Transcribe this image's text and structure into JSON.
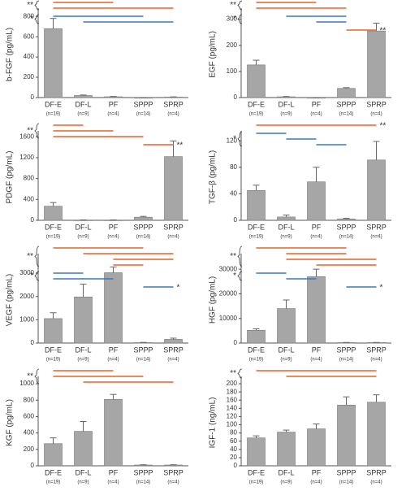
{
  "chart_data": [
    {
      "type": "bar",
      "ylabel": "b-FGF (pg/mL)",
      "categories": [
        "DF-E",
        "DF-L",
        "PF",
        "SPPP",
        "SPRP"
      ],
      "n_labels": [
        "(n=19)",
        "(n=9)",
        "(n=4)",
        "(n=14)",
        "(n=4)"
      ],
      "values": [
        680,
        20,
        8,
        0,
        5
      ],
      "errors": [
        100,
        5,
        3,
        0,
        2
      ],
      "color": "#a6a6a6",
      "ylim": [
        0,
        850
      ],
      "yticks": [
        0,
        200,
        400,
        600,
        800
      ],
      "significance": [
        {
          "label": "**",
          "brace": true,
          "lines": [
            {
              "pair": [
                "DF-E",
                "PF"
              ],
              "color": "#e8622a"
            },
            {
              "pair": [
                "DF-E",
                "SPRP"
              ],
              "color": "#e8622a"
            }
          ]
        },
        {
          "label": "*",
          "brace": true,
          "lines": [
            {
              "pair": [
                "DF-E",
                "SPPP"
              ],
              "color": "#3a78c2"
            },
            {
              "pair": [
                "DF-L",
                "SPRP"
              ],
              "color": "#3a78c2"
            }
          ]
        }
      ]
    },
    {
      "type": "bar",
      "ylabel": "EGF (pg/mL)",
      "categories": [
        "DF-E",
        "DF-L",
        "PF",
        "SPPP",
        "SPRP"
      ],
      "n_labels": [
        "(n=19)",
        "(n=9)",
        "(n=4)",
        "(n=14)",
        "(n=4)"
      ],
      "values": [
        125,
        3,
        0,
        35,
        255
      ],
      "errors": [
        18,
        1,
        0,
        3,
        30
      ],
      "color": "#a6a6a6",
      "ylim": [
        0,
        330
      ],
      "yticks": [
        0,
        100,
        200,
        300
      ],
      "significance": [
        {
          "label": "**",
          "brace": true,
          "lines": [
            {
              "pair": [
                "DF-E",
                "PF"
              ],
              "color": "#e8622a"
            },
            {
              "pair": [
                "DF-E",
                "SPPP"
              ],
              "color": "#e8622a"
            }
          ]
        },
        {
          "label": "*",
          "brace": true,
          "lines": [
            {
              "pair": [
                "DF-L",
                "SPPP"
              ],
              "color": "#3a78c2"
            },
            {
              "pair": [
                "PF",
                "SPPP"
              ],
              "color": "#3a78c2"
            }
          ]
        },
        {
          "label": "**",
          "brace": false,
          "lines": [
            {
              "pair": [
                "SPPP",
                "SPRP"
              ],
              "color": "#e8622a"
            }
          ]
        }
      ]
    },
    {
      "type": "bar",
      "ylabel": "PDGF (pg/mL)",
      "categories": [
        "DF-E",
        "DF-L",
        "PF",
        "SPPP",
        "SPRP"
      ],
      "n_labels": [
        "(n=19)",
        "(n=9)",
        "(n=4)",
        "(n=14)",
        "(n=4)"
      ],
      "values": [
        270,
        5,
        5,
        60,
        1220
      ],
      "errors": [
        70,
        2,
        2,
        15,
        300
      ],
      "color": "#a6a6a6",
      "ylim": [
        0,
        1650
      ],
      "yticks": [
        0,
        400,
        800,
        1200,
        1600
      ],
      "significance": [
        {
          "label": "**",
          "brace": true,
          "lines": [
            {
              "pair": [
                "DF-E",
                "DF-L"
              ],
              "color": "#e8622a"
            },
            {
              "pair": [
                "DF-E",
                "PF"
              ],
              "color": "#e8622a"
            },
            {
              "pair": [
                "DF-E",
                "SPPP"
              ],
              "color": "#e8622a"
            }
          ]
        },
        {
          "label": "**",
          "brace": false,
          "lines": [
            {
              "pair": [
                "SPPP",
                "SPRP"
              ],
              "color": "#e8622a"
            }
          ]
        }
      ]
    },
    {
      "type": "bar",
      "ylabel": "TGF-β (pg/mL)",
      "categories": [
        "DF-E",
        "DF-L",
        "PF",
        "SPPP",
        "SPRP"
      ],
      "n_labels": [
        "(n=19)",
        "(n=9)",
        "(n=4)",
        "(n=14)",
        "(n=4)"
      ],
      "values": [
        45,
        5,
        58,
        2,
        91
      ],
      "errors": [
        8,
        3,
        22,
        1,
        28
      ],
      "color": "#a6a6a6",
      "ylim": [
        0,
        130
      ],
      "yticks": [
        0,
        40,
        80,
        120
      ],
      "significance": [
        {
          "label": "**",
          "brace": false,
          "lines": [
            {
              "pair": [
                "DF-E",
                "SPRP"
              ],
              "color": "#e8622a"
            }
          ]
        },
        {
          "label": "*",
          "brace": true,
          "lines": [
            {
              "pair": [
                "DF-E",
                "DF-L"
              ],
              "color": "#3a78c2"
            },
            {
              "pair": [
                "DF-L",
                "PF"
              ],
              "color": "#3a78c2"
            },
            {
              "pair": [
                "PF",
                "SPPP"
              ],
              "color": "#3a78c2"
            }
          ]
        }
      ]
    },
    {
      "type": "bar",
      "ylabel": "VEGF (pg/mL)",
      "categories": [
        "DF-E",
        "DF-L",
        "PF",
        "SPPP",
        "SPRP"
      ],
      "n_labels": [
        "(n=19)",
        "(n=9)",
        "(n=4)",
        "(n=14)",
        "(n=4)"
      ],
      "values": [
        1050,
        1980,
        3020,
        20,
        160
      ],
      "errors": [
        250,
        550,
        250,
        10,
        50
      ],
      "color": "#a6a6a6",
      "ylim": [
        0,
        3700
      ],
      "yticks": [
        0,
        1000,
        2000,
        3000
      ],
      "significance": [
        {
          "label": "**",
          "brace": true,
          "lines": [
            {
              "pair": [
                "DF-E",
                "SPPP"
              ],
              "color": "#e8622a"
            },
            {
              "pair": [
                "DF-L",
                "SPRP"
              ],
              "color": "#e8622a"
            },
            {
              "pair": [
                "PF",
                "SPRP"
              ],
              "color": "#e8622a"
            },
            {
              "pair": [
                "PF",
                "SPPP"
              ],
              "color": "#e8622a"
            }
          ]
        },
        {
          "label": "*",
          "brace": true,
          "lines": [
            {
              "pair": [
                "DF-E",
                "DF-L"
              ],
              "color": "#3a78c2"
            },
            {
              "pair": [
                "DF-E",
                "PF"
              ],
              "color": "#3a78c2"
            }
          ]
        },
        {
          "label": "*",
          "brace": false,
          "lines": [
            {
              "pair": [
                "SPPP",
                "SPRP"
              ],
              "color": "#3a78c2"
            }
          ]
        }
      ]
    },
    {
      "type": "bar",
      "ylabel": "HGF (pg/mL)",
      "categories": [
        "DF-E",
        "DF-L",
        "PF",
        "SPPP",
        "SPRP"
      ],
      "n_labels": [
        "(n=19)",
        "(n=9)",
        "(n=4)",
        "(n=14)",
        "(n=4)"
      ],
      "values": [
        5200,
        14000,
        27000,
        200,
        200
      ],
      "errors": [
        600,
        3500,
        3000,
        50,
        50
      ],
      "color": "#a6a6a6",
      "ylim": [
        0,
        35000
      ],
      "yticks": [
        0,
        10000,
        20000,
        30000
      ],
      "significance": [
        {
          "label": "**",
          "brace": true,
          "lines": [
            {
              "pair": [
                "DF-E",
                "SPPP"
              ],
              "color": "#e8622a"
            },
            {
              "pair": [
                "DF-L",
                "SPPP"
              ],
              "color": "#e8622a"
            },
            {
              "pair": [
                "DF-L",
                "SPRP"
              ],
              "color": "#e8622a"
            },
            {
              "pair": [
                "PF",
                "SPRP"
              ],
              "color": "#e8622a"
            }
          ]
        },
        {
          "label": "*",
          "brace": true,
          "lines": [
            {
              "pair": [
                "DF-E",
                "DF-L"
              ],
              "color": "#3a78c2"
            },
            {
              "pair": [
                "DF-L",
                "PF"
              ],
              "color": "#3a78c2"
            }
          ]
        },
        {
          "label": "*",
          "brace": false,
          "lines": [
            {
              "pair": [
                "SPPP",
                "SPRP"
              ],
              "color": "#3a78c2"
            }
          ]
        }
      ]
    },
    {
      "type": "bar",
      "ylabel": "KGF (pg/mL)",
      "categories": [
        "DF-E",
        "DF-L",
        "PF",
        "SPPP",
        "SPRP"
      ],
      "n_labels": [
        "(n=19)",
        "(n=9)",
        "(n=4)",
        "(n=14)",
        "(n=4)"
      ],
      "values": [
        270,
        420,
        810,
        10,
        10
      ],
      "errors": [
        70,
        120,
        60,
        3,
        3
      ],
      "color": "#a6a6a6",
      "ylim": [
        0,
        1050
      ],
      "yticks": [
        0,
        200,
        400,
        600,
        800,
        1000
      ],
      "significance": [
        {
          "label": "**",
          "brace": true,
          "lines": [
            {
              "pair": [
                "DF-E",
                "PF"
              ],
              "color": "#e8622a"
            },
            {
              "pair": [
                "DF-E",
                "SPPP"
              ],
              "color": "#e8622a"
            },
            {
              "pair": [
                "DF-L",
                "SPRP"
              ],
              "color": "#e8622a"
            }
          ]
        }
      ]
    },
    {
      "type": "bar",
      "ylabel": "IGF-1 (ng/mL)",
      "categories": [
        "DF-E",
        "DF-L",
        "PF",
        "SPPP",
        "SPRP"
      ],
      "n_labels": [
        "(n=19)",
        "(n=9)",
        "(n=4)",
        "(n=14)",
        "(n=4)"
      ],
      "values": [
        68,
        82,
        90,
        148,
        155
      ],
      "errors": [
        5,
        5,
        12,
        20,
        18
      ],
      "color": "#a6a6a6",
      "ylim": [
        0,
        210
      ],
      "yticks": [
        0,
        20,
        40,
        60,
        80,
        100,
        120,
        140,
        160,
        180,
        200
      ],
      "significance": [
        {
          "label": "**",
          "brace": true,
          "lines": [
            {
              "pair": [
                "DF-E",
                "SPRP"
              ],
              "color": "#e8622a"
            },
            {
              "pair": [
                "DF-L",
                "SPRP"
              ],
              "color": "#e8622a"
            }
          ]
        }
      ]
    }
  ]
}
